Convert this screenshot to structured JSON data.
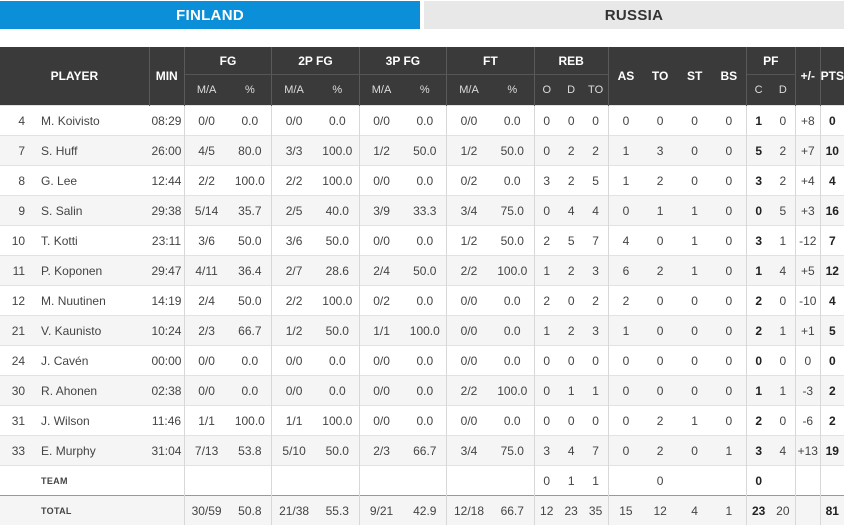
{
  "tabs": [
    {
      "label": "FINLAND",
      "active": true
    },
    {
      "label": "RUSSIA",
      "active": false
    }
  ],
  "headers": {
    "player": "PLAYER",
    "min": "MIN",
    "fg": "FG",
    "twopfg": "2P FG",
    "threepfg": "3P FG",
    "ft": "FT",
    "reb": "REB",
    "as": "AS",
    "to": "TO",
    "st": "ST",
    "bs": "BS",
    "pf": "PF",
    "pm": "+/-",
    "pts": "PTS",
    "ma": "M/A",
    "pct": "%",
    "o": "O",
    "d": "D",
    "tot": "TO",
    "c": "C"
  },
  "players": [
    {
      "num": "4",
      "name": "M. Koivisto",
      "min": "08:29",
      "fg": "0/0",
      "fgp": "0.0",
      "p2": "0/0",
      "p2p": "0.0",
      "p3": "0/0",
      "p3p": "0.0",
      "ft": "0/0",
      "ftp": "0.0",
      "o": "0",
      "d": "0",
      "rt": "0",
      "as": "0",
      "to": "0",
      "st": "0",
      "bs": "0",
      "pfc": "1",
      "pfd": "0",
      "pm": "+8",
      "pts": "0"
    },
    {
      "num": "7",
      "name": "S. Huff",
      "min": "26:00",
      "fg": "4/5",
      "fgp": "80.0",
      "p2": "3/3",
      "p2p": "100.0",
      "p3": "1/2",
      "p3p": "50.0",
      "ft": "1/2",
      "ftp": "50.0",
      "o": "0",
      "d": "2",
      "rt": "2",
      "as": "1",
      "to": "3",
      "st": "0",
      "bs": "0",
      "pfc": "5",
      "pfd": "2",
      "pm": "+7",
      "pts": "10"
    },
    {
      "num": "8",
      "name": "G. Lee",
      "min": "12:44",
      "fg": "2/2",
      "fgp": "100.0",
      "p2": "2/2",
      "p2p": "100.0",
      "p3": "0/0",
      "p3p": "0.0",
      "ft": "0/2",
      "ftp": "0.0",
      "o": "3",
      "d": "2",
      "rt": "5",
      "as": "1",
      "to": "2",
      "st": "0",
      "bs": "0",
      "pfc": "3",
      "pfd": "2",
      "pm": "+4",
      "pts": "4"
    },
    {
      "num": "9",
      "name": "S. Salin",
      "min": "29:38",
      "fg": "5/14",
      "fgp": "35.7",
      "p2": "2/5",
      "p2p": "40.0",
      "p3": "3/9",
      "p3p": "33.3",
      "ft": "3/4",
      "ftp": "75.0",
      "o": "0",
      "d": "4",
      "rt": "4",
      "as": "0",
      "to": "1",
      "st": "1",
      "bs": "0",
      "pfc": "0",
      "pfd": "5",
      "pm": "+3",
      "pts": "16"
    },
    {
      "num": "10",
      "name": "T. Kotti",
      "min": "23:11",
      "fg": "3/6",
      "fgp": "50.0",
      "p2": "3/6",
      "p2p": "50.0",
      "p3": "0/0",
      "p3p": "0.0",
      "ft": "1/2",
      "ftp": "50.0",
      "o": "2",
      "d": "5",
      "rt": "7",
      "as": "4",
      "to": "0",
      "st": "1",
      "bs": "0",
      "pfc": "3",
      "pfd": "1",
      "pm": "-12",
      "pts": "7"
    },
    {
      "num": "11",
      "name": "P. Koponen",
      "min": "29:47",
      "fg": "4/11",
      "fgp": "36.4",
      "p2": "2/7",
      "p2p": "28.6",
      "p3": "2/4",
      "p3p": "50.0",
      "ft": "2/2",
      "ftp": "100.0",
      "o": "1",
      "d": "2",
      "rt": "3",
      "as": "6",
      "to": "2",
      "st": "1",
      "bs": "0",
      "pfc": "1",
      "pfd": "4",
      "pm": "+5",
      "pts": "12"
    },
    {
      "num": "12",
      "name": "M. Nuutinen",
      "min": "14:19",
      "fg": "2/4",
      "fgp": "50.0",
      "p2": "2/2",
      "p2p": "100.0",
      "p3": "0/2",
      "p3p": "0.0",
      "ft": "0/0",
      "ftp": "0.0",
      "o": "2",
      "d": "0",
      "rt": "2",
      "as": "2",
      "to": "0",
      "st": "0",
      "bs": "0",
      "pfc": "2",
      "pfd": "0",
      "pm": "-10",
      "pts": "4"
    },
    {
      "num": "21",
      "name": "V. Kaunisto",
      "min": "10:24",
      "fg": "2/3",
      "fgp": "66.7",
      "p2": "1/2",
      "p2p": "50.0",
      "p3": "1/1",
      "p3p": "100.0",
      "ft": "0/0",
      "ftp": "0.0",
      "o": "1",
      "d": "2",
      "rt": "3",
      "as": "1",
      "to": "0",
      "st": "0",
      "bs": "0",
      "pfc": "2",
      "pfd": "1",
      "pm": "+1",
      "pts": "5"
    },
    {
      "num": "24",
      "name": "J. Cavén",
      "min": "00:00",
      "fg": "0/0",
      "fgp": "0.0",
      "p2": "0/0",
      "p2p": "0.0",
      "p3": "0/0",
      "p3p": "0.0",
      "ft": "0/0",
      "ftp": "0.0",
      "o": "0",
      "d": "0",
      "rt": "0",
      "as": "0",
      "to": "0",
      "st": "0",
      "bs": "0",
      "pfc": "0",
      "pfd": "0",
      "pm": "0",
      "pts": "0"
    },
    {
      "num": "30",
      "name": "R. Ahonen",
      "min": "02:38",
      "fg": "0/0",
      "fgp": "0.0",
      "p2": "0/0",
      "p2p": "0.0",
      "p3": "0/0",
      "p3p": "0.0",
      "ft": "2/2",
      "ftp": "100.0",
      "o": "0",
      "d": "1",
      "rt": "1",
      "as": "0",
      "to": "0",
      "st": "0",
      "bs": "0",
      "pfc": "1",
      "pfd": "1",
      "pm": "-3",
      "pts": "2"
    },
    {
      "num": "31",
      "name": "J. Wilson",
      "min": "11:46",
      "fg": "1/1",
      "fgp": "100.0",
      "p2": "1/1",
      "p2p": "100.0",
      "p3": "0/0",
      "p3p": "0.0",
      "ft": "0/0",
      "ftp": "0.0",
      "o": "0",
      "d": "0",
      "rt": "0",
      "as": "0",
      "to": "2",
      "st": "1",
      "bs": "0",
      "pfc": "2",
      "pfd": "0",
      "pm": "-6",
      "pts": "2"
    },
    {
      "num": "33",
      "name": "E. Murphy",
      "min": "31:04",
      "fg": "7/13",
      "fgp": "53.8",
      "p2": "5/10",
      "p2p": "50.0",
      "p3": "2/3",
      "p3p": "66.7",
      "ft": "3/4",
      "ftp": "75.0",
      "o": "3",
      "d": "4",
      "rt": "7",
      "as": "0",
      "to": "2",
      "st": "0",
      "bs": "1",
      "pfc": "3",
      "pfd": "4",
      "pm": "+13",
      "pts": "19"
    }
  ],
  "team": {
    "num": "",
    "name": "TEAM",
    "min": "",
    "fg": "",
    "fgp": "",
    "p2": "",
    "p2p": "",
    "p3": "",
    "p3p": "",
    "ft": "",
    "ftp": "",
    "o": "0",
    "d": "1",
    "rt": "1",
    "as": "",
    "to": "0",
    "st": "",
    "bs": "",
    "pfc": "0",
    "pfd": "",
    "pm": "",
    "pts": ""
  },
  "total": {
    "num": "",
    "name": "TOTAL",
    "min": "",
    "fg": "30/59",
    "fgp": "50.8",
    "p2": "21/38",
    "p2p": "55.3",
    "p3": "9/21",
    "p3p": "42.9",
    "ft": "12/18",
    "ftp": "66.7",
    "o": "12",
    "d": "23",
    "rt": "35",
    "as": "15",
    "to": "12",
    "st": "4",
    "bs": "1",
    "pfc": "23",
    "pfd": "20",
    "pm": "",
    "pts": "81"
  }
}
